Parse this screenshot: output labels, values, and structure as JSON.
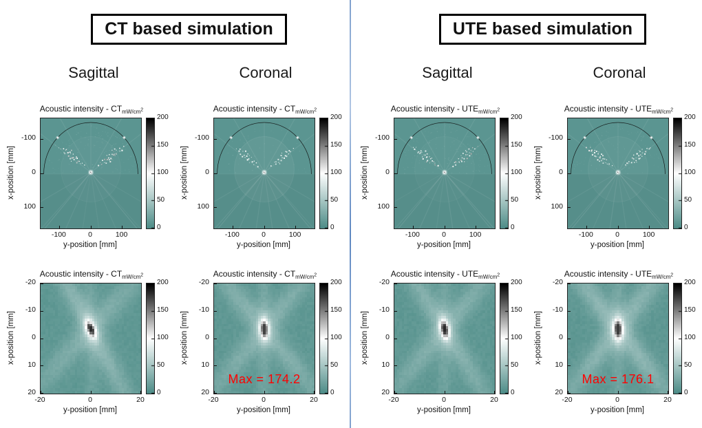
{
  "page": {
    "background": "#ffffff",
    "divider_color": "#6f94c6",
    "max_label_color": "#ff0000",
    "base_teal": "#4d8c87"
  },
  "sections": [
    {
      "id": "ct",
      "title": "CT based simulation",
      "columns": [
        "Sagittal",
        "Coronal"
      ]
    },
    {
      "id": "ute",
      "title": "UTE based simulation",
      "columns": [
        "Sagittal",
        "Coronal"
      ]
    }
  ],
  "chart_data": {
    "type": "heatmap",
    "colormap": {
      "range": [
        0,
        200
      ],
      "stops": [
        {
          "value": 0,
          "color": "#4d8c87"
        },
        {
          "value": 100,
          "color": "#ffffff"
        },
        {
          "value": 200,
          "color": "#000000"
        }
      ],
      "ticks": [
        200,
        150,
        100,
        50,
        0
      ]
    },
    "panels": [
      {
        "name": "ct-sagittal-overview",
        "section": 0,
        "view": "Sagittal",
        "kind": "overview",
        "title": "Acoustic intensity - CT",
        "unit_sub": "mW/cm",
        "unit_sup": "2",
        "xlabel": "y-position [mm]",
        "ylabel": "x-position [mm]",
        "x_range": [
          -160,
          160
        ],
        "y_range": [
          -160,
          160
        ],
        "x_ticks": [
          -100,
          0,
          100
        ],
        "y_ticks": [
          -100,
          0,
          100
        ],
        "render": {
          "seed": 7,
          "speckle": 1.0,
          "skull": 0.55
        }
      },
      {
        "name": "ct-coronal-overview",
        "section": 0,
        "view": "Coronal",
        "kind": "overview",
        "title": "Acoustic intensity - CT",
        "unit_sub": "mW/cm",
        "unit_sup": "2",
        "xlabel": "y-position [mm]",
        "ylabel": "x-position [mm]",
        "x_range": [
          -160,
          160
        ],
        "y_range": [
          -160,
          160
        ],
        "x_ticks": [
          -100,
          0,
          100
        ],
        "y_ticks": [
          -100,
          0,
          100
        ],
        "render": {
          "seed": 8,
          "speckle": 0.45,
          "skull": 0.85
        }
      },
      {
        "name": "ct-sagittal-zoom",
        "section": 0,
        "view": "Sagittal",
        "kind": "zoom",
        "title": "Acoustic intensity - CT",
        "unit_sub": "mW/cm",
        "unit_sup": "2",
        "xlabel": "y-position [mm]",
        "ylabel": "x-position [mm]",
        "x_range": [
          -20,
          20
        ],
        "y_range": [
          -20,
          20
        ],
        "x_ticks": [
          -20,
          0,
          20
        ],
        "y_ticks": [
          -20,
          -10,
          0,
          10,
          20
        ],
        "render": {
          "seed": 21,
          "tilt": 27,
          "arms": [
            [
              30,
              28,
              2.8
            ],
            [
              -45,
              20,
              3.2
            ],
            [
              2,
              12,
              2.2
            ]
          ],
          "halo": 92,
          "core": 62,
          "peak": 182
        }
      },
      {
        "name": "ct-coronal-zoom",
        "section": 0,
        "view": "Coronal",
        "kind": "zoom",
        "title": "Acoustic intensity - CT",
        "unit_sub": "mW/cm",
        "unit_sup": "2",
        "xlabel": "y-position [mm]",
        "ylabel": "x-position [mm]",
        "x_range": [
          -20,
          20
        ],
        "y_range": [
          -20,
          20
        ],
        "x_ticks": [
          -20,
          0,
          20
        ],
        "y_ticks": [
          -20,
          -10,
          0,
          10,
          20
        ],
        "max_label": "Max = 174.2",
        "max_value": 174.2,
        "render": {
          "seed": 22,
          "tilt": 4,
          "arms": [
            [
              42,
              24,
              3.0
            ],
            [
              -42,
              22,
              3.0
            ],
            [
              0,
              15,
              2.0
            ]
          ],
          "halo": 95,
          "core": 58,
          "peak": 174
        }
      },
      {
        "name": "ute-sagittal-overview",
        "section": 1,
        "view": "Sagittal",
        "kind": "overview",
        "title": "Acoustic intensity - UTE",
        "unit_sub": "mW/cm",
        "unit_sup": "2",
        "xlabel": "y-position [mm]",
        "ylabel": "x-position [mm]",
        "x_range": [
          -160,
          160
        ],
        "y_range": [
          -160,
          160
        ],
        "x_ticks": [
          -100,
          0,
          100
        ],
        "y_ticks": [
          -100,
          0,
          100
        ],
        "render": {
          "seed": 9,
          "speckle": 0.95,
          "skull": 0.5
        }
      },
      {
        "name": "ute-coronal-overview",
        "section": 1,
        "view": "Coronal",
        "kind": "overview",
        "title": "Acoustic intensity - UTE",
        "unit_sub": "mW/cm",
        "unit_sup": "2",
        "xlabel": "y-position [mm]",
        "ylabel": "x-position [mm]",
        "x_range": [
          -160,
          160
        ],
        "y_range": [
          -160,
          160
        ],
        "x_ticks": [
          -100,
          0,
          100
        ],
        "y_ticks": [
          -100,
          0,
          100
        ],
        "render": {
          "seed": 10,
          "speckle": 0.7,
          "skull": 0.7
        }
      },
      {
        "name": "ute-sagittal-zoom",
        "section": 1,
        "view": "Sagittal",
        "kind": "zoom",
        "title": "Acoustic intensity - UTE",
        "unit_sub": "mW/cm",
        "unit_sup": "2",
        "xlabel": "y-position [mm]",
        "ylabel": "x-position [mm]",
        "x_range": [
          -20,
          20
        ],
        "y_range": [
          -20,
          20
        ],
        "x_ticks": [
          -20,
          0,
          20
        ],
        "y_ticks": [
          -20,
          -10,
          0,
          10,
          20
        ],
        "render": {
          "seed": 23,
          "tilt": 14,
          "arms": [
            [
              34,
              25,
              2.8
            ],
            [
              -42,
              22,
              3.0
            ],
            [
              0,
              13,
              2.2
            ]
          ],
          "halo": 95,
          "core": 62,
          "peak": 184
        }
      },
      {
        "name": "ute-coronal-zoom",
        "section": 1,
        "view": "Coronal",
        "kind": "zoom",
        "title": "Acoustic intensity - UTE",
        "unit_sub": "mW/cm",
        "unit_sup": "2",
        "xlabel": "y-position [mm]",
        "ylabel": "x-position [mm]",
        "x_range": [
          -20,
          20
        ],
        "y_range": [
          -20,
          20
        ],
        "x_ticks": [
          -20,
          0,
          20
        ],
        "y_ticks": [
          -20,
          -10,
          0,
          10,
          20
        ],
        "max_label": "Max = 176.1",
        "max_value": 176.1,
        "render": {
          "seed": 24,
          "tilt": 2,
          "arms": [
            [
              40,
              30,
              3.0
            ],
            [
              -40,
              27,
              3.0
            ],
            [
              0,
              15,
              2.0
            ]
          ],
          "halo": 96,
          "core": 60,
          "peak": 176
        }
      }
    ]
  }
}
